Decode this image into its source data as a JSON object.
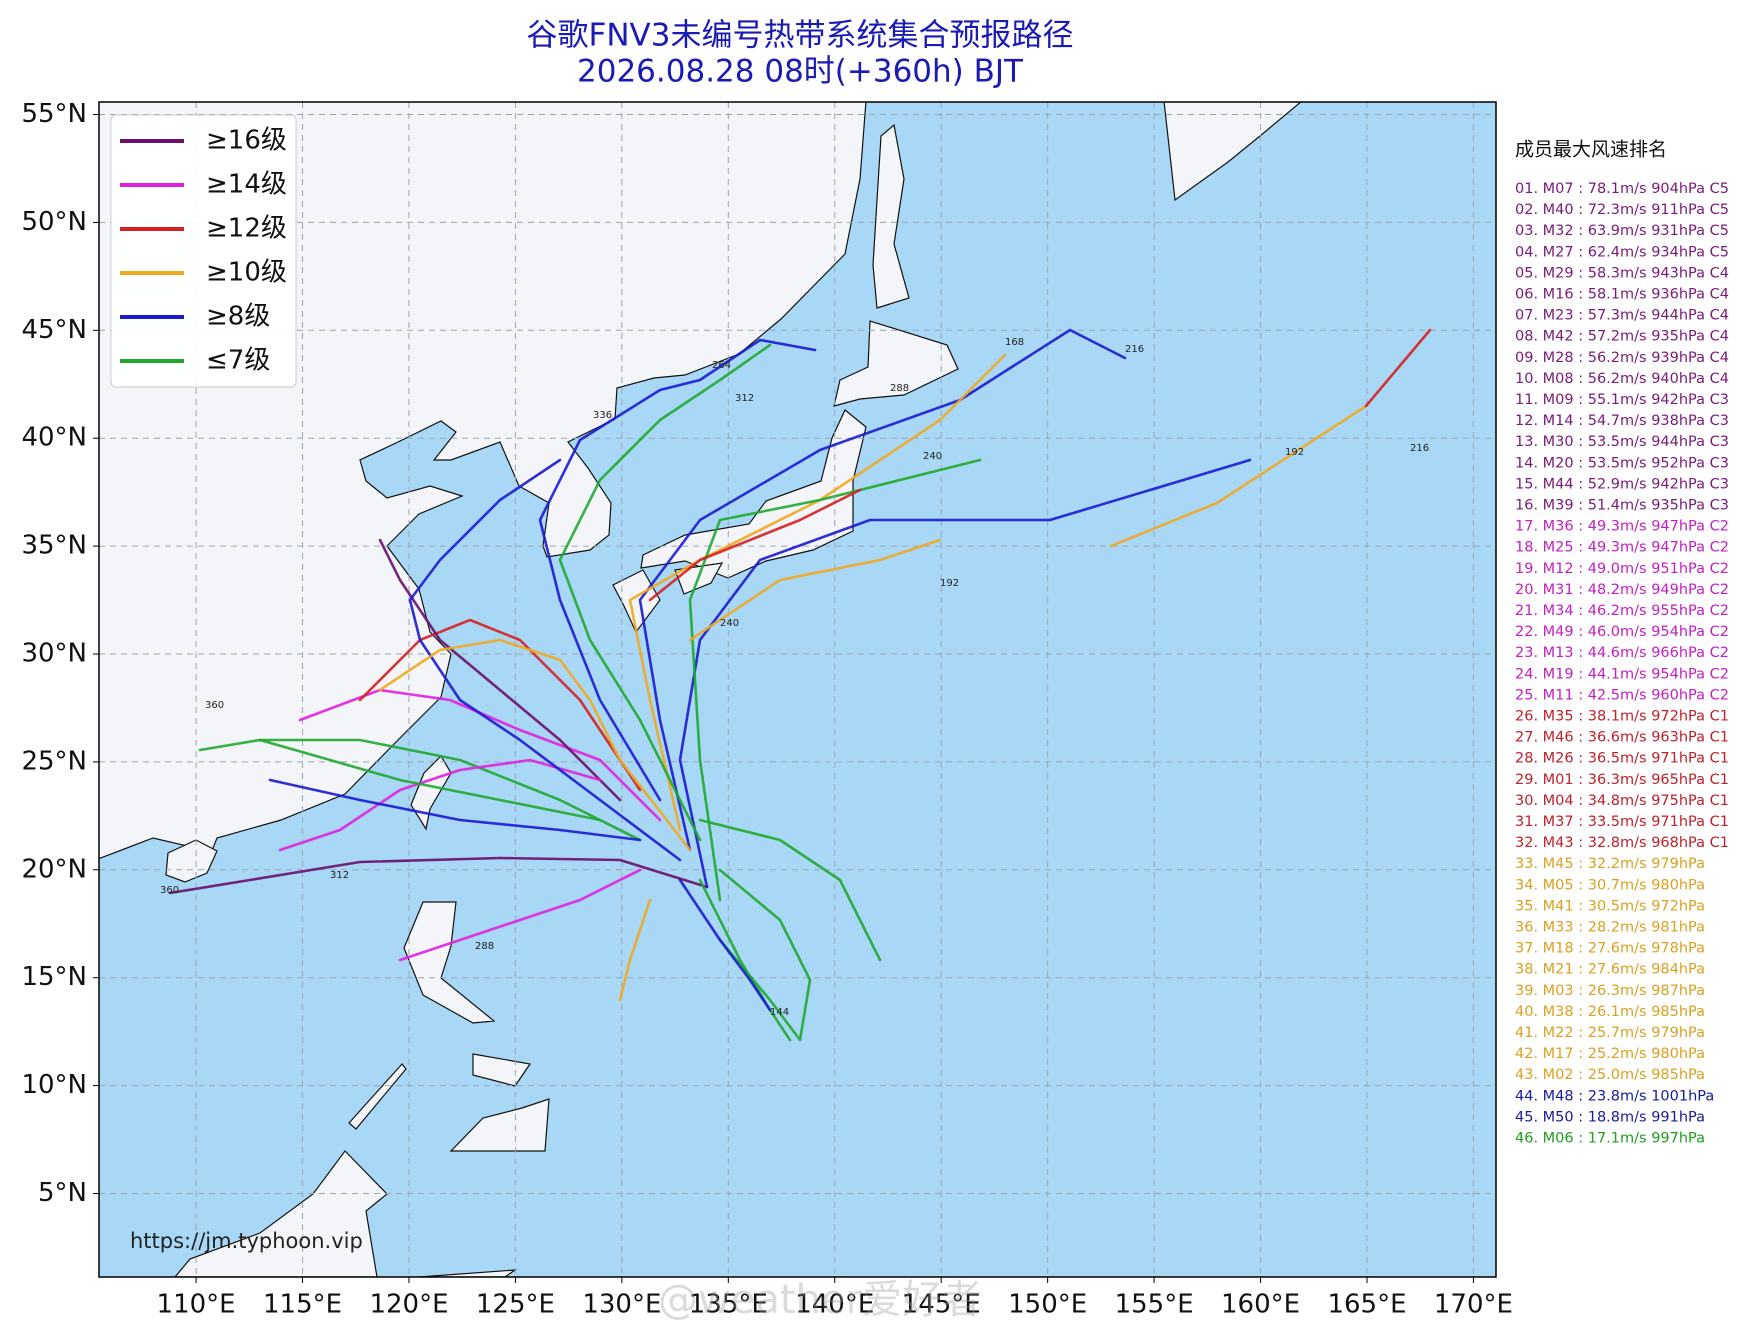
{
  "header": {
    "title": "谷歌FNV3未编号热带系统集合预报路径",
    "subtitle": "2026.08.28 08时(+360h) BJT"
  },
  "map": {
    "xlim": [
      105.44,
      171.06
    ],
    "ylim": [
      1.13,
      55.58
    ],
    "xticks": [
      {
        "value": 110,
        "label": "110°E"
      },
      {
        "value": 115,
        "label": "115°E"
      },
      {
        "value": 120,
        "label": "120°E"
      },
      {
        "value": 125,
        "label": "125°E"
      },
      {
        "value": 130,
        "label": "130°E"
      },
      {
        "value": 135,
        "label": "135°E"
      },
      {
        "value": 140,
        "label": "140°E"
      },
      {
        "value": 145,
        "label": "145°E"
      },
      {
        "value": 150,
        "label": "150°E"
      },
      {
        "value": 155,
        "label": "155°E"
      },
      {
        "value": 160,
        "label": "160°E"
      },
      {
        "value": 165,
        "label": "165°E"
      },
      {
        "value": 170,
        "label": "170°E"
      }
    ],
    "yticks": [
      {
        "value": 5,
        "label": "5°N"
      },
      {
        "value": 10,
        "label": "10°N"
      },
      {
        "value": 15,
        "label": "15°N"
      },
      {
        "value": 20,
        "label": "20°N"
      },
      {
        "value": 25,
        "label": "25°N"
      },
      {
        "value": 30,
        "label": "30°N"
      },
      {
        "value": 35,
        "label": "35°N"
      },
      {
        "value": 40,
        "label": "40°N"
      },
      {
        "value": 45,
        "label": "45°N"
      },
      {
        "value": 50,
        "label": "50°N"
      },
      {
        "value": 55,
        "label": "55°N"
      }
    ],
    "grid": true,
    "sea_color": "#a9d8f7",
    "land_color": "#f3f5f9",
    "source": "https://jm.typhoon.vip",
    "watermark": "@weather爱好者",
    "track_labels": [
      "168",
      "216",
      "192",
      "240",
      "288",
      "312",
      "336",
      "360",
      "264",
      "144",
      "216",
      "240",
      "192",
      "360",
      "312",
      "288"
    ]
  },
  "legend": {
    "position": "upper left",
    "items": [
      {
        "label": "≥16级",
        "color": "#6a0f6a"
      },
      {
        "label": "≥14级",
        "color": "#e020e0"
      },
      {
        "label": "≥12级",
        "color": "#d42020"
      },
      {
        "label": "≥10级",
        "color": "#f0a820"
      },
      {
        "label": "≥8级",
        "color": "#1a1ad0"
      },
      {
        "label": "≤7级",
        "color": "#20a830"
      }
    ]
  },
  "ranking": {
    "title": "成员最大风速排名",
    "groups": [
      {
        "color": "#7a1a78",
        "items": [
          "01. M07 : 78.1m/s 904hPa C5",
          "02. M40 : 72.3m/s 911hPa C5",
          "03. M32 : 63.9m/s 931hPa C5",
          "04. M27 : 62.4m/s 934hPa C5",
          "05. M29 : 58.3m/s 943hPa C4",
          "06. M16 : 58.1m/s 936hPa C4",
          "07. M23 : 57.3m/s 944hPa C4",
          "08. M42 : 57.2m/s 935hPa C4",
          "09. M28 : 56.2m/s 939hPa C4",
          "10. M08 : 56.2m/s 940hPa C4",
          "11. M09 : 55.1m/s 942hPa C3",
          "12. M14 : 54.7m/s 938hPa C3",
          "13. M30 : 53.5m/s 944hPa C3",
          "14. M20 : 53.5m/s 952hPa C3",
          "15. M44 : 52.9m/s 942hPa C3",
          "16. M39 : 51.4m/s 935hPa C3"
        ]
      },
      {
        "color": "#c41ec4",
        "items": [
          "17. M36 : 49.3m/s 947hPa C2",
          "18. M25 : 49.3m/s 947hPa C2",
          "19. M12 : 49.0m/s 951hPa C2",
          "20. M31 : 48.2m/s 949hPa C2",
          "21. M34 : 46.2m/s 955hPa C2",
          "22. M49 : 46.0m/s 954hPa C2",
          "23. M13 : 44.6m/s 966hPa C2",
          "24. M19 : 44.1m/s 954hPa C2",
          "25. M11 : 42.5m/s 960hPa C2"
        ]
      },
      {
        "color": "#c0202a",
        "items": [
          "26. M35 : 38.1m/s 972hPa C1",
          "27. M46 : 36.6m/s 963hPa C1",
          "28. M26 : 36.5m/s 971hPa C1",
          "29. M01 : 36.3m/s 965hPa C1",
          "30. M04 : 34.8m/s 975hPa C1",
          "31. M37 : 33.5m/s 971hPa C1",
          "32. M43 : 32.8m/s 968hPa C1"
        ]
      },
      {
        "color": "#dca020",
        "items": [
          "33. M45 : 32.2m/s 979hPa",
          "34. M05 : 30.7m/s 980hPa",
          "35. M41 : 30.5m/s 972hPa",
          "36. M33 : 28.2m/s 981hPa",
          "37. M18 : 27.6m/s 978hPa",
          "38. M21 : 27.6m/s 984hPa",
          "39. M03 : 26.3m/s 987hPa",
          "40. M38 : 26.1m/s 985hPa",
          "41. M22 : 25.7m/s 979hPa",
          "42. M17 : 25.2m/s 980hPa",
          "43. M02 : 25.0m/s 985hPa"
        ]
      },
      {
        "color": "#1a1a9a",
        "items": [
          "44. M48 : 23.8m/s 1001hPa",
          "45. M50 : 18.8m/s 991hPa"
        ]
      },
      {
        "color": "#1f9e1f",
        "items": [
          "46. M06 : 17.1m/s 997hPa"
        ]
      }
    ]
  }
}
